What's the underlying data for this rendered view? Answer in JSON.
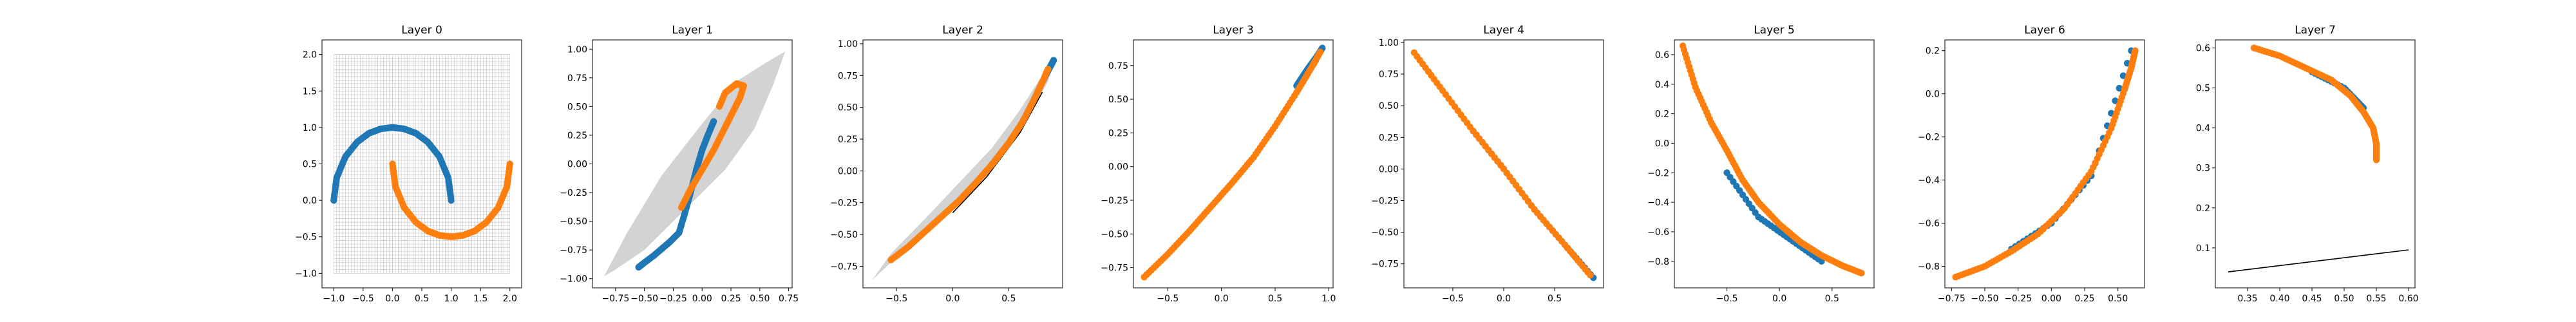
{
  "colors": {
    "class_a": "#1f77b4",
    "class_b": "#ff7f0e",
    "region": "#d3d3d3",
    "grid": "#c0c0c0",
    "boundary": "#000000"
  },
  "chart_data": [
    {
      "title": "Layer 0",
      "type": "scatter",
      "grid": true,
      "xlim": [
        -1.2,
        2.2
      ],
      "ylim": [
        -1.2,
        2.2
      ],
      "xticks": [
        -1.0,
        -0.5,
        0.0,
        0.5,
        1.0,
        1.5,
        2.0
      ],
      "xtick_labels": [
        "−1.0",
        "−0.5",
        "0.0",
        "0.5",
        "1.0",
        "1.5",
        "2.0"
      ],
      "yticks": [
        -1.0,
        -0.5,
        0.0,
        0.5,
        1.0,
        1.5,
        2.0
      ],
      "ytick_labels": [
        "−1.0",
        "−0.5",
        "0.0",
        "0.5",
        "1.0",
        "1.5",
        "2.0"
      ],
      "series": [
        {
          "class": "a",
          "x": [
            -1.0,
            -0.95,
            -0.8,
            -0.6,
            -0.4,
            -0.2,
            0.0,
            0.2,
            0.4,
            0.6,
            0.8,
            0.95,
            1.0
          ],
          "y": [
            0.0,
            0.31,
            0.6,
            0.8,
            0.92,
            0.98,
            1.0,
            0.98,
            0.92,
            0.8,
            0.6,
            0.31,
            0.0
          ]
        },
        {
          "class": "b",
          "x": [
            0.0,
            0.05,
            0.2,
            0.4,
            0.6,
            0.8,
            1.0,
            1.2,
            1.4,
            1.6,
            1.8,
            1.95,
            2.0
          ],
          "y": [
            0.5,
            0.19,
            -0.1,
            -0.3,
            -0.42,
            -0.48,
            -0.5,
            -0.48,
            -0.42,
            -0.3,
            -0.1,
            0.19,
            0.5
          ]
        }
      ]
    },
    {
      "title": "Layer 1",
      "type": "scatter",
      "xlim": [
        -0.95,
        0.78
      ],
      "ylim": [
        -1.08,
        1.08
      ],
      "xticks": [
        -0.75,
        -0.5,
        -0.25,
        0.0,
        0.25,
        0.5,
        0.75
      ],
      "xtick_labels": [
        "−0.75",
        "−0.50",
        "−0.25",
        "0.00",
        "0.25",
        "0.50",
        "0.75"
      ],
      "yticks": [
        -1.0,
        -0.75,
        -0.5,
        -0.25,
        0.0,
        0.25,
        0.5,
        0.75,
        1.0
      ],
      "ytick_labels": [
        "−1.00",
        "−0.75",
        "−0.50",
        "−0.25",
        "0.00",
        "0.25",
        "0.50",
        "0.75",
        "1.00"
      ],
      "region": {
        "x": [
          -0.85,
          -0.65,
          -0.35,
          0.0,
          0.3,
          0.55,
          0.72,
          0.62,
          0.45,
          0.2,
          -0.15,
          -0.5,
          -0.75,
          -0.85
        ],
        "y": [
          -0.98,
          -0.6,
          -0.1,
          0.35,
          0.72,
          0.88,
          0.98,
          0.7,
          0.3,
          -0.05,
          -0.4,
          -0.75,
          -0.92,
          -0.98
        ]
      },
      "series": [
        {
          "class": "a",
          "x": [
            -0.55,
            -0.5,
            -0.42,
            -0.35,
            -0.28,
            -0.2,
            -0.15,
            -0.1,
            -0.05,
            0.0,
            0.05,
            0.1
          ],
          "y": [
            -0.9,
            -0.86,
            -0.8,
            -0.74,
            -0.68,
            -0.6,
            -0.43,
            -0.25,
            -0.05,
            0.12,
            0.25,
            0.37
          ]
        },
        {
          "class": "b",
          "x": [
            -0.18,
            -0.1,
            0.0,
            0.1,
            0.2,
            0.28,
            0.33,
            0.36,
            0.3,
            0.2,
            0.15
          ],
          "y": [
            -0.38,
            -0.22,
            -0.05,
            0.12,
            0.32,
            0.48,
            0.58,
            0.68,
            0.7,
            0.62,
            0.5
          ]
        }
      ]
    },
    {
      "title": "Layer 2",
      "type": "scatter",
      "xlim": [
        -0.8,
        0.98
      ],
      "ylim": [
        -0.92,
        1.03
      ],
      "xticks": [
        -0.5,
        0.0,
        0.5
      ],
      "xtick_labels": [
        "−0.5",
        "0.0",
        "0.5"
      ],
      "yticks": [
        -0.75,
        -0.5,
        -0.25,
        0.0,
        0.25,
        0.5,
        0.75,
        1.0
      ],
      "ytick_labels": [
        "−0.75",
        "−0.50",
        "−0.25",
        "0.00",
        "0.25",
        "0.50",
        "0.75",
        "1.00"
      ],
      "region": {
        "x": [
          -0.72,
          -0.5,
          -0.2,
          0.1,
          0.4,
          0.65,
          0.85,
          0.9,
          0.82,
          0.6,
          0.35,
          0.05,
          -0.25,
          -0.55,
          -0.72
        ],
        "y": [
          -0.86,
          -0.68,
          -0.42,
          -0.18,
          0.12,
          0.42,
          0.7,
          0.9,
          0.78,
          0.48,
          0.18,
          -0.1,
          -0.38,
          -0.65,
          -0.86
        ]
      },
      "boundary": {
        "x": [
          0.0,
          0.3,
          0.6,
          0.8
        ],
        "y": [
          -0.33,
          -0.05,
          0.3,
          0.62
        ]
      },
      "series": [
        {
          "class": "a",
          "x": [
            0.35,
            0.5,
            0.62,
            0.72,
            0.8,
            0.87,
            0.9
          ],
          "y": [
            0.05,
            0.22,
            0.38,
            0.55,
            0.7,
            0.82,
            0.87
          ]
        },
        {
          "class": "b",
          "x": [
            -0.55,
            -0.4,
            -0.25,
            -0.1,
            0.05,
            0.2,
            0.35,
            0.5,
            0.62,
            0.72,
            0.8,
            0.85
          ],
          "y": [
            -0.7,
            -0.6,
            -0.48,
            -0.36,
            -0.24,
            -0.1,
            0.05,
            0.22,
            0.38,
            0.55,
            0.7,
            0.8
          ]
        }
      ]
    },
    {
      "title": "Layer 3",
      "type": "scatter",
      "xlim": [
        -0.82,
        1.04
      ],
      "ylim": [
        -0.9,
        0.94
      ],
      "xticks": [
        -0.5,
        0.0,
        0.5,
        1.0
      ],
      "xtick_labels": [
        "−0.5",
        "0.0",
        "0.5",
        "1.0"
      ],
      "yticks": [
        -0.75,
        -0.5,
        -0.25,
        0.0,
        0.25,
        0.5,
        0.75
      ],
      "ytick_labels": [
        "−0.75",
        "−0.50",
        "−0.25",
        "0.00",
        "0.25",
        "0.50",
        "0.75"
      ],
      "series": [
        {
          "class": "a",
          "x": [
            0.7,
            0.8,
            0.9,
            0.94
          ],
          "y": [
            0.6,
            0.72,
            0.83,
            0.88
          ]
        },
        {
          "class": "b",
          "x": [
            -0.72,
            -0.5,
            -0.3,
            -0.1,
            0.1,
            0.3,
            0.5,
            0.7,
            0.85,
            0.92
          ],
          "y": [
            -0.82,
            -0.65,
            -0.48,
            -0.3,
            -0.12,
            0.07,
            0.3,
            0.55,
            0.75,
            0.85
          ]
        }
      ]
    },
    {
      "title": "Layer 4",
      "type": "scatter",
      "xlim": [
        -0.98,
        0.98
      ],
      "ylim": [
        -0.94,
        1.02
      ],
      "xticks": [
        -0.5,
        0.0,
        0.5
      ],
      "xtick_labels": [
        "−0.5",
        "0.0",
        "0.5"
      ],
      "yticks": [
        -0.75,
        -0.5,
        -0.25,
        0.0,
        0.25,
        0.5,
        0.75,
        1.0
      ],
      "ytick_labels": [
        "−0.75",
        "−0.50",
        "−0.25",
        "0.00",
        "0.25",
        "0.50",
        "0.75",
        "1.00"
      ],
      "series": [
        {
          "class": "a",
          "x": [
            -0.3,
            0.0,
            0.3,
            0.6,
            0.88
          ],
          "y": [
            0.3,
            0.0,
            -0.32,
            -0.6,
            -0.86
          ]
        },
        {
          "class": "b",
          "x": [
            -0.88,
            -0.6,
            -0.3,
            0.0,
            0.3,
            0.6,
            0.85
          ],
          "y": [
            0.92,
            0.62,
            0.3,
            0.0,
            -0.32,
            -0.6,
            -0.84
          ]
        }
      ]
    },
    {
      "title": "Layer 5",
      "type": "scatter",
      "xlim": [
        -1.0,
        0.9
      ],
      "ylim": [
        -0.98,
        0.7
      ],
      "xticks": [
        -0.5,
        0.0,
        0.5
      ],
      "xtick_labels": [
        "−0.5",
        "0.0",
        "0.5"
      ],
      "yticks": [
        -0.8,
        -0.6,
        -0.4,
        -0.2,
        0.0,
        0.2,
        0.4,
        0.6
      ],
      "ytick_labels": [
        "−0.8",
        "−0.6",
        "−0.4",
        "−0.2",
        "0.0",
        "0.2",
        "0.4",
        "0.6"
      ],
      "series": [
        {
          "class": "a",
          "x": [
            -0.5,
            -0.2,
            0.1,
            0.4
          ],
          "y": [
            -0.2,
            -0.5,
            -0.65,
            -0.8
          ]
        },
        {
          "class": "b",
          "x": [
            -0.92,
            -0.8,
            -0.65,
            -0.5,
            -0.35,
            -0.2,
            0.0,
            0.2,
            0.4,
            0.6,
            0.78
          ],
          "y": [
            0.66,
            0.38,
            0.14,
            -0.05,
            -0.25,
            -0.4,
            -0.55,
            -0.67,
            -0.76,
            -0.83,
            -0.88
          ]
        }
      ]
    },
    {
      "title": "Layer 6",
      "type": "scatter",
      "xlim": [
        -0.8,
        0.7
      ],
      "ylim": [
        -0.9,
        0.25
      ],
      "xticks": [
        -0.75,
        -0.5,
        -0.25,
        0.0,
        0.25,
        0.5
      ],
      "xtick_labels": [
        "−0.75",
        "−0.50",
        "−0.25",
        "0.00",
        "0.25",
        "0.50"
      ],
      "yticks": [
        -0.8,
        -0.6,
        -0.4,
        -0.2,
        0.0,
        0.2
      ],
      "ytick_labels": [
        "−0.8",
        "−0.6",
        "−0.4",
        "−0.2",
        "0.0",
        "0.2"
      ],
      "series": [
        {
          "class": "a",
          "x": [
            -0.3,
            0.0,
            0.3,
            0.6
          ],
          "y": [
            -0.72,
            -0.6,
            -0.38,
            0.2
          ]
        },
        {
          "class": "b",
          "x": [
            -0.72,
            -0.5,
            -0.3,
            -0.1,
            0.1,
            0.3,
            0.45,
            0.55,
            0.6,
            0.63
          ],
          "y": [
            -0.85,
            -0.8,
            -0.73,
            -0.65,
            -0.53,
            -0.36,
            -0.16,
            0.02,
            0.12,
            0.2
          ]
        }
      ]
    },
    {
      "title": "Layer 7",
      "type": "scatter",
      "xlim": [
        0.3,
        0.61
      ],
      "ylim": [
        0.0,
        0.62
      ],
      "xticks": [
        0.35,
        0.4,
        0.45,
        0.5,
        0.55,
        0.6
      ],
      "xtick_labels": [
        "0.35",
        "0.40",
        "0.45",
        "0.50",
        "0.55",
        "0.60"
      ],
      "yticks": [
        0.1,
        0.2,
        0.3,
        0.4,
        0.5,
        0.6
      ],
      "ytick_labels": [
        "0.1",
        "0.2",
        "0.3",
        "0.4",
        "0.5",
        "0.6"
      ],
      "boundary": {
        "x": [
          0.32,
          0.6
        ],
        "y": [
          0.04,
          0.095
        ]
      },
      "series": [
        {
          "class": "a",
          "x": [
            0.45,
            0.5,
            0.53
          ],
          "y": [
            0.54,
            0.5,
            0.45
          ]
        },
        {
          "class": "b",
          "x": [
            0.36,
            0.4,
            0.44,
            0.48,
            0.51,
            0.53,
            0.545,
            0.55,
            0.55
          ],
          "y": [
            0.6,
            0.58,
            0.55,
            0.52,
            0.48,
            0.44,
            0.4,
            0.36,
            0.32
          ]
        }
      ]
    }
  ]
}
